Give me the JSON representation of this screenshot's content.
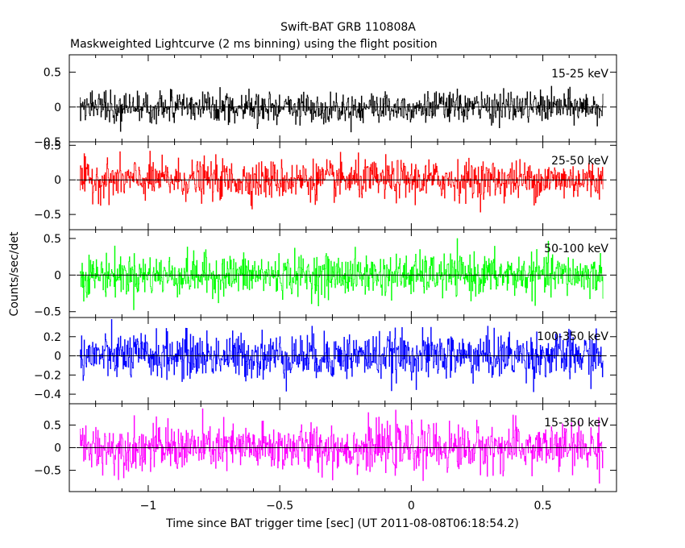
{
  "title_line1": "Swift-BAT GRB 110808A",
  "title_line2": "Maskweighted Lightcurve (2 ms binning) using the flight position",
  "xlabel": "Time since BAT trigger time [sec] (UT 2011-08-08T06:18:54.2)",
  "ylabel": "Counts/sec/det",
  "chart_data": {
    "type": "line",
    "x_range": [
      -1.3,
      0.78
    ],
    "x_ticks": [
      -1,
      -0.5,
      0,
      0.5
    ],
    "x_tick_labels": [
      "−1",
      "−0.5",
      "0",
      "0.5"
    ],
    "x_data_range": [
      -1.26,
      0.73
    ],
    "bin_width_sec": 0.002,
    "panels": [
      {
        "name": "15-25 keV",
        "color": "#000000",
        "ylim": [
          -0.5,
          0.75
        ],
        "yticks": [
          0.5,
          0,
          -0.5
        ],
        "ytick_labels": [
          "0.5",
          "0",
          "−0.5"
        ],
        "noise_std": 0.11,
        "ymax_clip": 0.48
      },
      {
        "name": "25-50 keV",
        "color": "#ff0000",
        "ylim": [
          -0.72,
          0.55
        ],
        "yticks": [
          0.5,
          0,
          -0.5
        ],
        "ytick_labels": [
          "0.5",
          "0",
          "−0.5"
        ],
        "noise_std": 0.14,
        "ymax_clip": 0.5
      },
      {
        "name": "50-100 keV",
        "color": "#00ff00",
        "ylim": [
          -0.58,
          0.62
        ],
        "yticks": [
          0.5,
          0,
          -0.5
        ],
        "ytick_labels": [
          "0.5",
          "0",
          "−0.5"
        ],
        "noise_std": 0.14,
        "ymax_clip": 0.58
      },
      {
        "name": "100-350 keV",
        "color": "#0000ff",
        "ylim": [
          -0.5,
          0.4
        ],
        "yticks": [
          0.2,
          0,
          -0.2,
          -0.4
        ],
        "ytick_labels": [
          "0.2",
          "0",
          "−0.2",
          "−0.4"
        ],
        "noise_std": 0.12,
        "ymax_clip": 0.38
      },
      {
        "name": "15-350 keV",
        "color": "#ff00ff",
        "ylim": [
          -0.97,
          0.97
        ],
        "yticks": [
          0.5,
          0,
          -0.5
        ],
        "ytick_labels": [
          "0.5",
          "0",
          "−0.5"
        ],
        "noise_std": 0.26,
        "ymax_clip": 0.95
      }
    ]
  }
}
